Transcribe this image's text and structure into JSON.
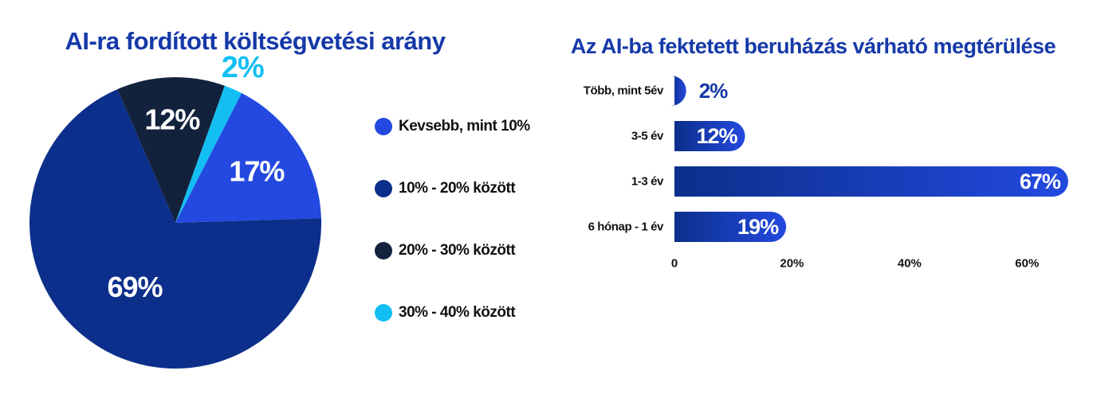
{
  "chart_data": [
    {
      "type": "pie",
      "title": "AI-ra fordított költségvetési arány",
      "slices": [
        {
          "label": "Kevsebb, mint 10%",
          "value": 17,
          "value_label": "17%",
          "color": "#2349e0"
        },
        {
          "label": "10% - 20% között",
          "value": 69,
          "value_label": "69%",
          "color": "#0b2f8a"
        },
        {
          "label": "20% - 30% között",
          "value": 12,
          "value_label": "12%",
          "color": "#12223d"
        },
        {
          "label": "30% - 40% között",
          "value": 2,
          "value_label": "2%",
          "color": "#13bff2"
        }
      ],
      "legend_position": "right"
    },
    {
      "type": "bar",
      "orientation": "horizontal",
      "title": "Az AI-ba fektetett beruházás várható megtérülése",
      "categories": [
        "Több, mint 5év",
        "3-5 év",
        "1-3 év",
        "6 hónap - 1 év"
      ],
      "values": [
        2,
        12,
        67,
        19
      ],
      "value_labels": [
        "2%",
        "12%",
        "67%",
        "19%"
      ],
      "xlim": [
        0,
        70
      ],
      "xticks": [
        0,
        20,
        40,
        60
      ],
      "xtick_labels": [
        "0",
        "20%",
        "40%",
        "60%"
      ],
      "colors": {
        "bar_dark": "#0b2f8a",
        "bar_light": "#2349e0"
      },
      "grid": false
    }
  ]
}
